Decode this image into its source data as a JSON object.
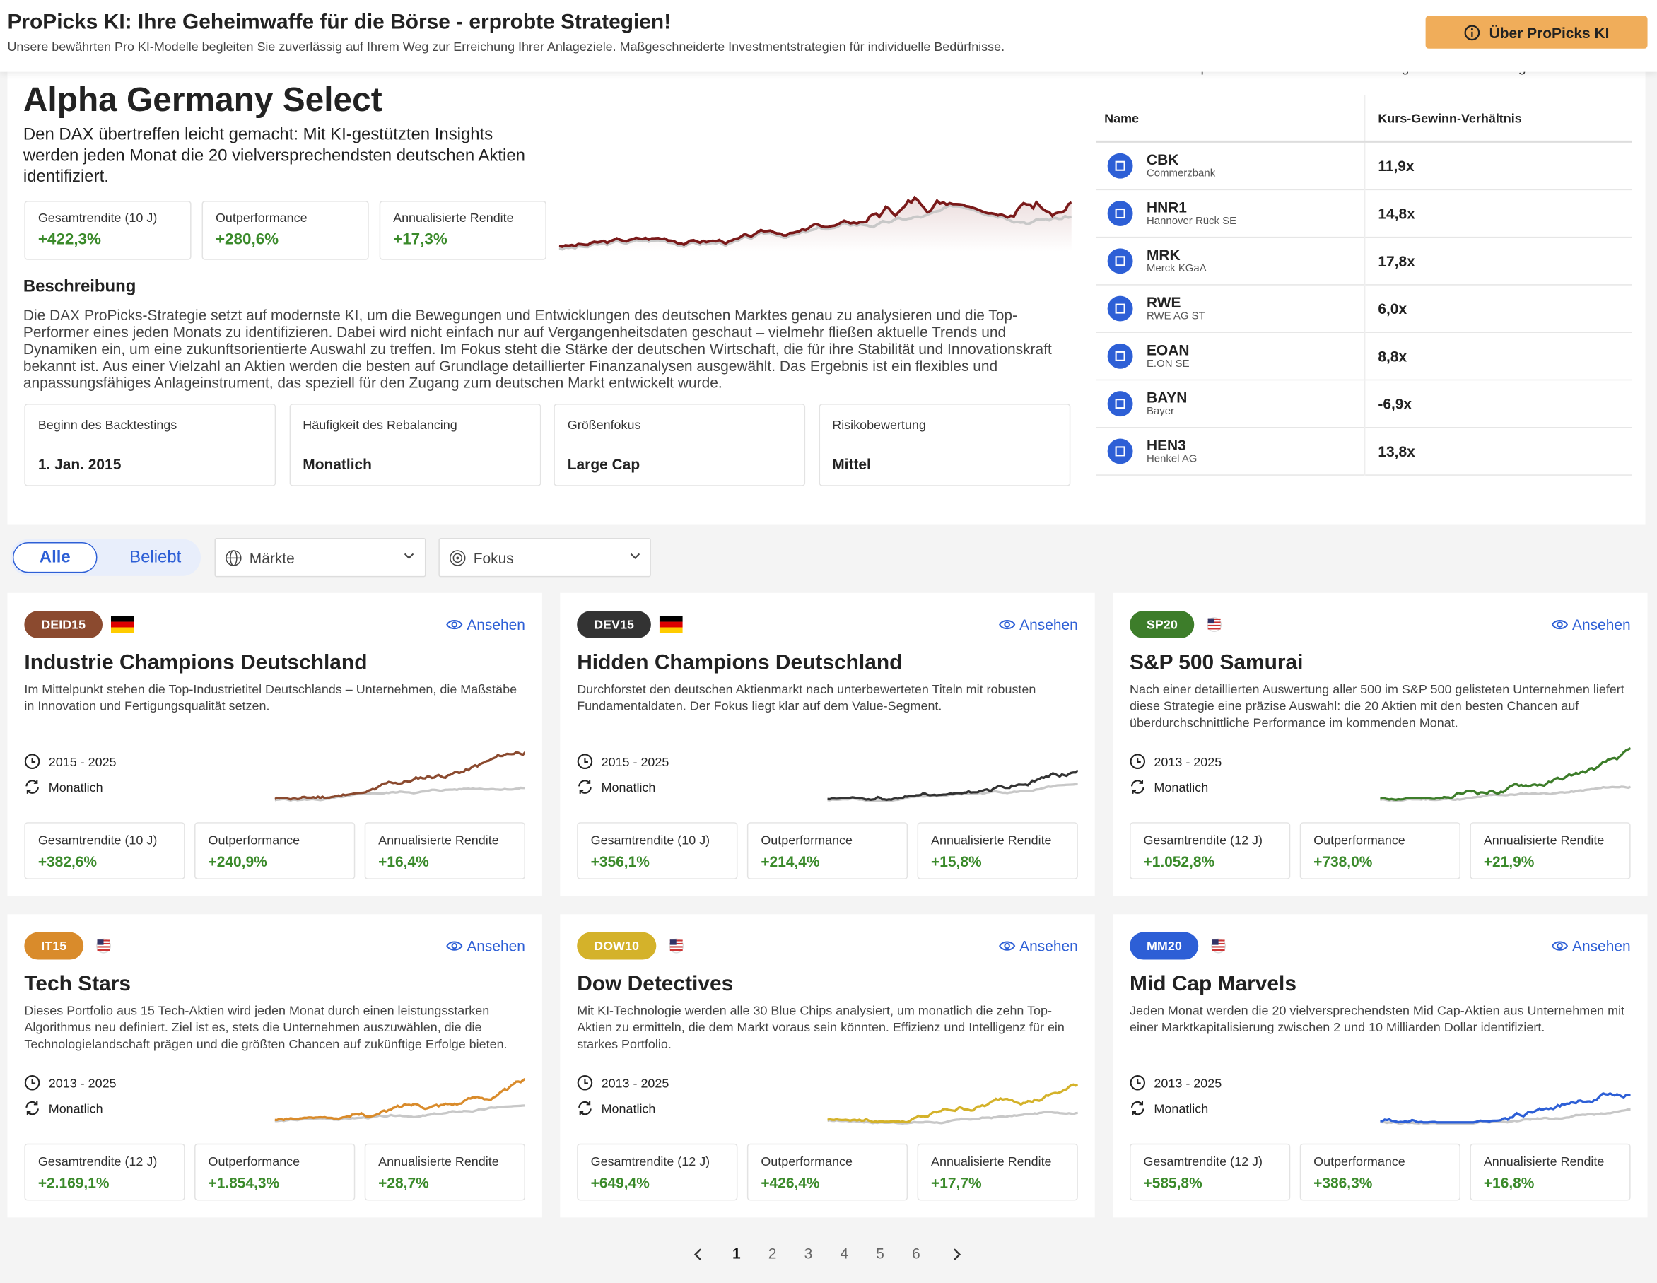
{
  "header": {
    "title": "ProPicks KI: Ihre Geheimwaffe für die Börse - erprobte Strategien!",
    "subtitle": "Unsere bewährten Pro KI-Modelle begleiten Sie zuverlässig auf Ihrem Weg zur Erreichung Ihrer Anlageziele. Maßgeschneiderte Investmentstrategien für individuelle Bedürfnisse.",
    "button": "Über ProPicks KI"
  },
  "hero": {
    "title": "Alpha Germany Select",
    "description": "Den DAX übertreffen leicht gemacht: Mit KI-gestützten Insights werden jeden Monat die 20 vielversprechendsten deutschen Aktien identifiziert.",
    "stats": [
      {
        "label": "Gesamtrendite (10 J)",
        "value": "+422,3%"
      },
      {
        "label": "Outperformance",
        "value": "+280,6%"
      },
      {
        "label": "Annualisierte Rendite",
        "value": "+17,3%"
      }
    ],
    "section": "Beschreibung",
    "text": "Die DAX ProPicks-Strategie setzt auf modernste KI, um die Bewegungen und Entwicklungen des deutschen Marktes genau zu analysieren und die Top-Performer eines jeden Monats zu identifizieren. Dabei wird nicht einfach nur auf Vergangenheitsdaten geschaut – vielmehr fließen aktuelle Trends und Dynamiken ein, um eine zukunftsorientierte Auswahl zu treffen. Im Fokus steht die Stärke der deutschen Wirtschaft, die für ihre Stabilität und Innovationskraft bekannt ist. Aus einer Vielzahl an Aktien werden die besten auf Grundlage detaillierter Finanzanalysen ausgewählt. Das Ergebnis ist ein flexibles und anpassungsfähiges Anlageinstrument, das speziell für den Zugang zum deutschen Markt entwickelt wurde.",
    "info": [
      {
        "label": "Beginn des Backtestings",
        "value": "1. Jan. 2015"
      },
      {
        "label": "Häufigkeit des Rebalancing",
        "value": "Monatlich"
      },
      {
        "label": "Größenfokus",
        "value": "Large Cap"
      },
      {
        "label": "Risikobewertung",
        "value": "Mittel"
      }
    ]
  },
  "table": {
    "intro": "Holen Sie sich Top-Daten für bessere Entscheidungen und mehr Erfolg!",
    "headers": [
      "Name",
      "Kurs-Gewinn-Verhältnis"
    ],
    "rows": [
      {
        "ticker": "CBK",
        "name": "Commerzbank",
        "pe": "11,9x"
      },
      {
        "ticker": "HNR1",
        "name": "Hannover Rück SE",
        "pe": "14,8x"
      },
      {
        "ticker": "MRK",
        "name": "Merck KGaA",
        "pe": "17,8x"
      },
      {
        "ticker": "RWE",
        "name": "RWE AG ST",
        "pe": "6,0x"
      },
      {
        "ticker": "EOAN",
        "name": "E.ON SE",
        "pe": "8,8x"
      },
      {
        "ticker": "BAYN",
        "name": "Bayer",
        "pe": "-6,9x"
      },
      {
        "ticker": "HEN3",
        "name": "Henkel AG",
        "pe": "13,8x"
      }
    ]
  },
  "filters": {
    "tabs": [
      "Alle",
      "Beliebt"
    ],
    "dropdowns": [
      "Märkte",
      "Fokus"
    ]
  },
  "cards": [
    {
      "badge": "DEID15",
      "color": "#8b4a2f",
      "view": "Ansehen",
      "title": "Industrie Champions Deutschland",
      "description": "Im Mittelpunkt stehen die Top-Industrietitel Deutschlands – Unternehmen, die Maßstäbe in Innovation und Fertigungsqualität setzen.",
      "period": "2015 - 2025",
      "rebalance": "Monatlich",
      "stats": [
        {
          "label": "Gesamtrendite (10 J)",
          "value": "+382,6%"
        },
        {
          "label": "Outperformance",
          "value": "+240,9%"
        },
        {
          "label": "Annualisierte Rendite",
          "value": "+16,4%"
        }
      ]
    },
    {
      "badge": "DEV15",
      "color": "#333333",
      "view": "Ansehen",
      "title": "Hidden Champions Deutschland",
      "description": "Durchforstet den deutschen Aktienmarkt nach unterbewerteten Titeln mit robusten Fundamentaldaten. Der Fokus liegt klar auf dem Value-Segment.",
      "period": "2015 - 2025",
      "rebalance": "Monatlich",
      "stats": [
        {
          "label": "Gesamtrendite (10 J)",
          "value": "+356,1%"
        },
        {
          "label": "Outperformance",
          "value": "+214,4%"
        },
        {
          "label": "Annualisierte Rendite",
          "value": "+15,8%"
        }
      ]
    },
    {
      "badge": "SP20",
      "color": "#3d7d2a",
      "view": "Ansehen",
      "title": "S&P 500 Samurai",
      "description": "Nach einer detaillierten Auswertung aller 500 im S&P 500 gelisteten Unternehmen liefert diese Strategie eine präzise Auswahl: die 20 Aktien mit den besten Chancen auf überdurchschnittliche Performance im kommenden Monat.",
      "period": "2013 - 2025",
      "rebalance": "Monatlich",
      "stats": [
        {
          "label": "Gesamtrendite (12 J)",
          "value": "+1.052,8%"
        },
        {
          "label": "Outperformance",
          "value": "+738,0%"
        },
        {
          "label": "Annualisierte Rendite",
          "value": "+21,9%"
        }
      ]
    },
    {
      "badge": "IT15",
      "color": "#d98b2b",
      "view": "Ansehen",
      "title": "Tech Stars",
      "description": "Dieses Portfolio aus 15 Tech-Aktien wird jeden Monat durch einen leistungsstarken Algorithmus neu definiert. Ziel ist es, stets die Unternehmen auszuwählen, die die Technologielandschaft prägen und die größten Chancen auf zukünftige Erfolge bieten.",
      "period": "2013 - 2025",
      "rebalance": "Monatlich",
      "stats": [
        {
          "label": "Gesamtrendite (12 J)",
          "value": "+2.169,1%"
        },
        {
          "label": "Outperformance",
          "value": "+1.854,3%"
        },
        {
          "label": "Annualisierte Rendite",
          "value": "+28,7%"
        }
      ]
    },
    {
      "badge": "DOW10",
      "color": "#d4b22a",
      "view": "Ansehen",
      "title": "Dow Detectives",
      "description": "Mit KI-Technologie werden alle 30 Blue Chips analysiert, um monatlich die zehn Top-Aktien zu ermitteln, die dem Markt voraus sein könnten. Effizienz und Intelligenz für ein starkes Portfolio.",
      "period": "2013 - 2025",
      "rebalance": "Monatlich",
      "stats": [
        {
          "label": "Gesamtrendite (12 J)",
          "value": "+649,4%"
        },
        {
          "label": "Outperformance",
          "value": "+426,4%"
        },
        {
          "label": "Annualisierte Rendite",
          "value": "+17,7%"
        }
      ]
    },
    {
      "badge": "MM20",
      "color": "#2d5fd6",
      "view": "Ansehen",
      "title": "Mid Cap Marvels",
      "description": "Jeden Monat werden die 20 vielversprechendsten Mid Cap-Aktien aus Unternehmen mit einer Marktkapitalisierung zwischen 2 und 10 Milliarden Dollar identifiziert.",
      "period": "2013 - 2025",
      "rebalance": "Monatlich",
      "stats": [
        {
          "label": "Gesamtrendite (12 J)",
          "value": "+585,8%"
        },
        {
          "label": "Outperformance",
          "value": "+386,3%"
        },
        {
          "label": "Annualisierte Rendite",
          "value": "+16,8%"
        }
      ]
    }
  ],
  "pagination": [
    "1",
    "2",
    "3",
    "4",
    "5",
    "6"
  ]
}
